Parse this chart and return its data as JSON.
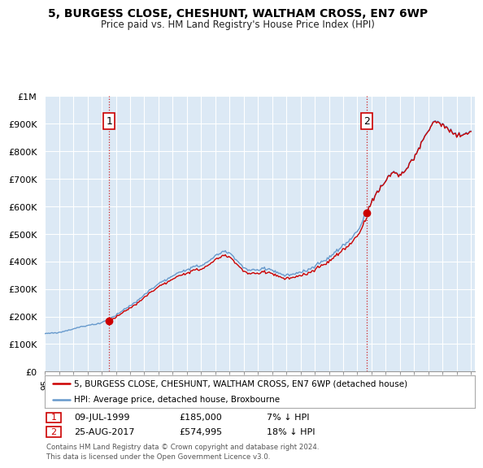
{
  "title": "5, BURGESS CLOSE, CHESHUNT, WALTHAM CROSS, EN7 6WP",
  "subtitle": "Price paid vs. HM Land Registry's House Price Index (HPI)",
  "xlim_start": 1995.0,
  "xlim_end": 2025.3,
  "ylim": [
    0,
    1000000
  ],
  "yticks": [
    0,
    100000,
    200000,
    300000,
    400000,
    500000,
    600000,
    700000,
    800000,
    900000,
    1000000
  ],
  "ytick_labels": [
    "£0",
    "£100K",
    "£200K",
    "£300K",
    "£400K",
    "£500K",
    "£600K",
    "£700K",
    "£800K",
    "£900K",
    "£1M"
  ],
  "background_color": "#ffffff",
  "plot_bg_color": "#dce9f5",
  "grid_color": "#ffffff",
  "line_color_hpi": "#6699cc",
  "line_color_price": "#cc0000",
  "sale1_x": 1999.53,
  "sale1_y": 185000,
  "sale2_x": 2017.65,
  "sale2_y": 574995,
  "annotation1_label": "1",
  "annotation2_label": "2",
  "legend_label_price": "5, BURGESS CLOSE, CHESHUNT, WALTHAM CROSS, EN7 6WP (detached house)",
  "legend_label_hpi": "HPI: Average price, detached house, Broxbourne",
  "table_row1": [
    "1",
    "09-JUL-1999",
    "£185,000",
    "7% ↓ HPI"
  ],
  "table_row2": [
    "2",
    "25-AUG-2017",
    "£574,995",
    "18% ↓ HPI"
  ],
  "footer": "Contains HM Land Registry data © Crown copyright and database right 2024.\nThis data is licensed under the Open Government Licence v3.0.",
  "vline1_x": 1999.53,
  "vline2_x": 2017.65,
  "hpi_key_years": [
    1995.0,
    1995.5,
    1996.0,
    1996.5,
    1997.0,
    1997.5,
    1998.0,
    1998.5,
    1999.0,
    1999.5,
    2000.0,
    2000.5,
    2001.0,
    2001.5,
    2002.0,
    2002.5,
    2003.0,
    2003.5,
    2004.0,
    2004.5,
    2005.0,
    2005.5,
    2006.0,
    2006.5,
    2007.0,
    2007.5,
    2008.0,
    2008.5,
    2009.0,
    2009.5,
    2010.0,
    2010.5,
    2011.0,
    2011.5,
    2012.0,
    2012.5,
    2013.0,
    2013.5,
    2014.0,
    2014.5,
    2015.0,
    2015.5,
    2016.0,
    2016.5,
    2017.0,
    2017.5,
    2018.0,
    2018.5,
    2019.0,
    2019.5,
    2020.0,
    2020.5,
    2021.0,
    2021.5,
    2022.0,
    2022.5,
    2023.0,
    2023.5,
    2024.0,
    2024.5,
    2025.0
  ],
  "hpi_key_vals": [
    138000,
    140000,
    142000,
    148000,
    155000,
    162000,
    168000,
    172000,
    178000,
    190000,
    205000,
    222000,
    238000,
    255000,
    278000,
    300000,
    318000,
    332000,
    345000,
    360000,
    372000,
    378000,
    385000,
    398000,
    418000,
    435000,
    430000,
    405000,
    375000,
    365000,
    368000,
    375000,
    368000,
    355000,
    348000,
    352000,
    358000,
    368000,
    382000,
    398000,
    415000,
    435000,
    458000,
    480000,
    510000,
    560000,
    620000,
    660000,
    700000,
    730000,
    720000,
    740000,
    780000,
    830000,
    880000,
    920000,
    900000,
    880000,
    860000,
    870000,
    880000
  ]
}
